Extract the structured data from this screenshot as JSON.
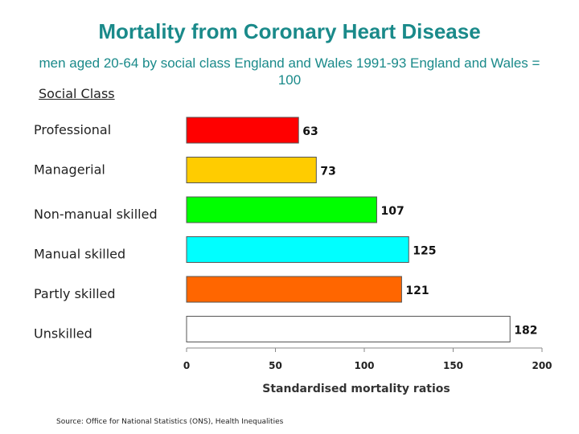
{
  "chart_data": {
    "type": "bar",
    "orientation": "horizontal",
    "title": "Mortality from Coronary Heart Disease",
    "subtitle": "men aged 20-64 by social class   England and Wales   1991-93 England and Wales = 100",
    "category_heading": "Social Class",
    "categories": [
      "Professional",
      "Managerial",
      "Non-manual skilled",
      "Manual skilled",
      "Partly skilled",
      "Unskilled"
    ],
    "values": [
      63,
      73,
      107,
      125,
      121,
      182
    ],
    "value_labels": [
      "63",
      "73",
      "107",
      "125",
      "121",
      "182"
    ],
    "colors": [
      "#ff0000",
      "#ffcc00",
      "#00ff00",
      "#00ffff",
      "#ff6600",
      "#ffffff"
    ],
    "xlabel": "Standardised mortality ratios",
    "xlim": [
      0,
      200
    ],
    "xticks": [
      0,
      50,
      100,
      150,
      200
    ],
    "xtick_labels": [
      "0",
      "50",
      "100",
      "150",
      "200"
    ],
    "grid": false,
    "legend": "none"
  },
  "source": "Source: Office for National Statistics (ONS), Health Inequalities"
}
